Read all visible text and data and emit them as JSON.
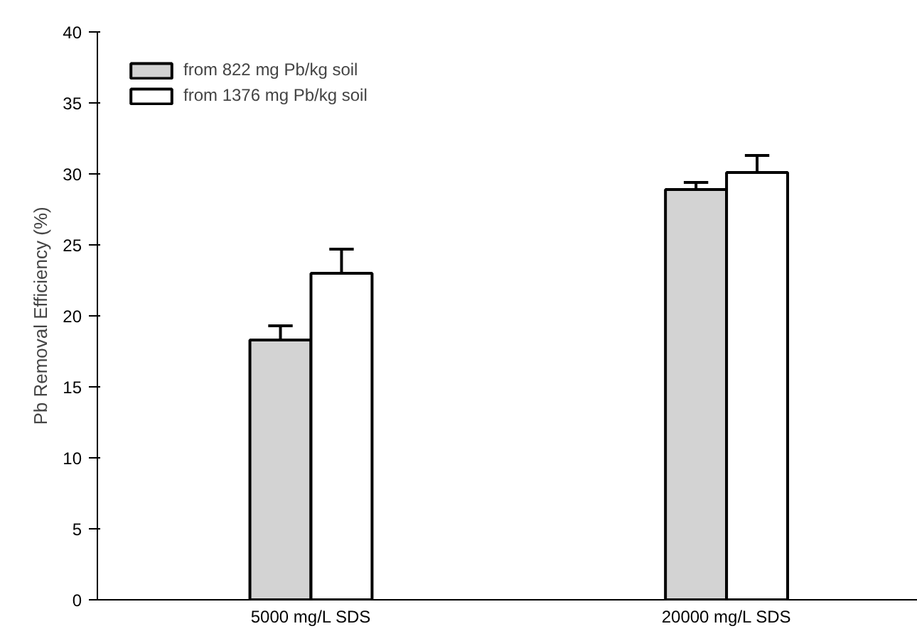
{
  "chart_data": {
    "type": "bar",
    "ylabel": "Pb Removal Efficiency (%)",
    "categories": [
      "5000 mg/L SDS",
      "20000 mg/L SDS"
    ],
    "series": [
      {
        "name": "from 822 mg Pb/kg soil",
        "color": "#d3d3d3",
        "values": [
          18.3,
          28.9
        ],
        "errors": [
          [
            18.3,
            19.3
          ],
          [
            28.9,
            29.4
          ]
        ]
      },
      {
        "name": "from 1376 mg Pb/kg soil",
        "color": "#ffffff",
        "values": [
          23.0,
          30.1
        ],
        "errors": [
          [
            23.0,
            24.7
          ],
          [
            30.1,
            31.3
          ]
        ]
      }
    ],
    "ylim": [
      0,
      40
    ],
    "yticks": [
      0,
      5,
      10,
      15,
      20,
      25,
      30,
      35,
      40
    ],
    "grid": false,
    "legend": "top left"
  }
}
